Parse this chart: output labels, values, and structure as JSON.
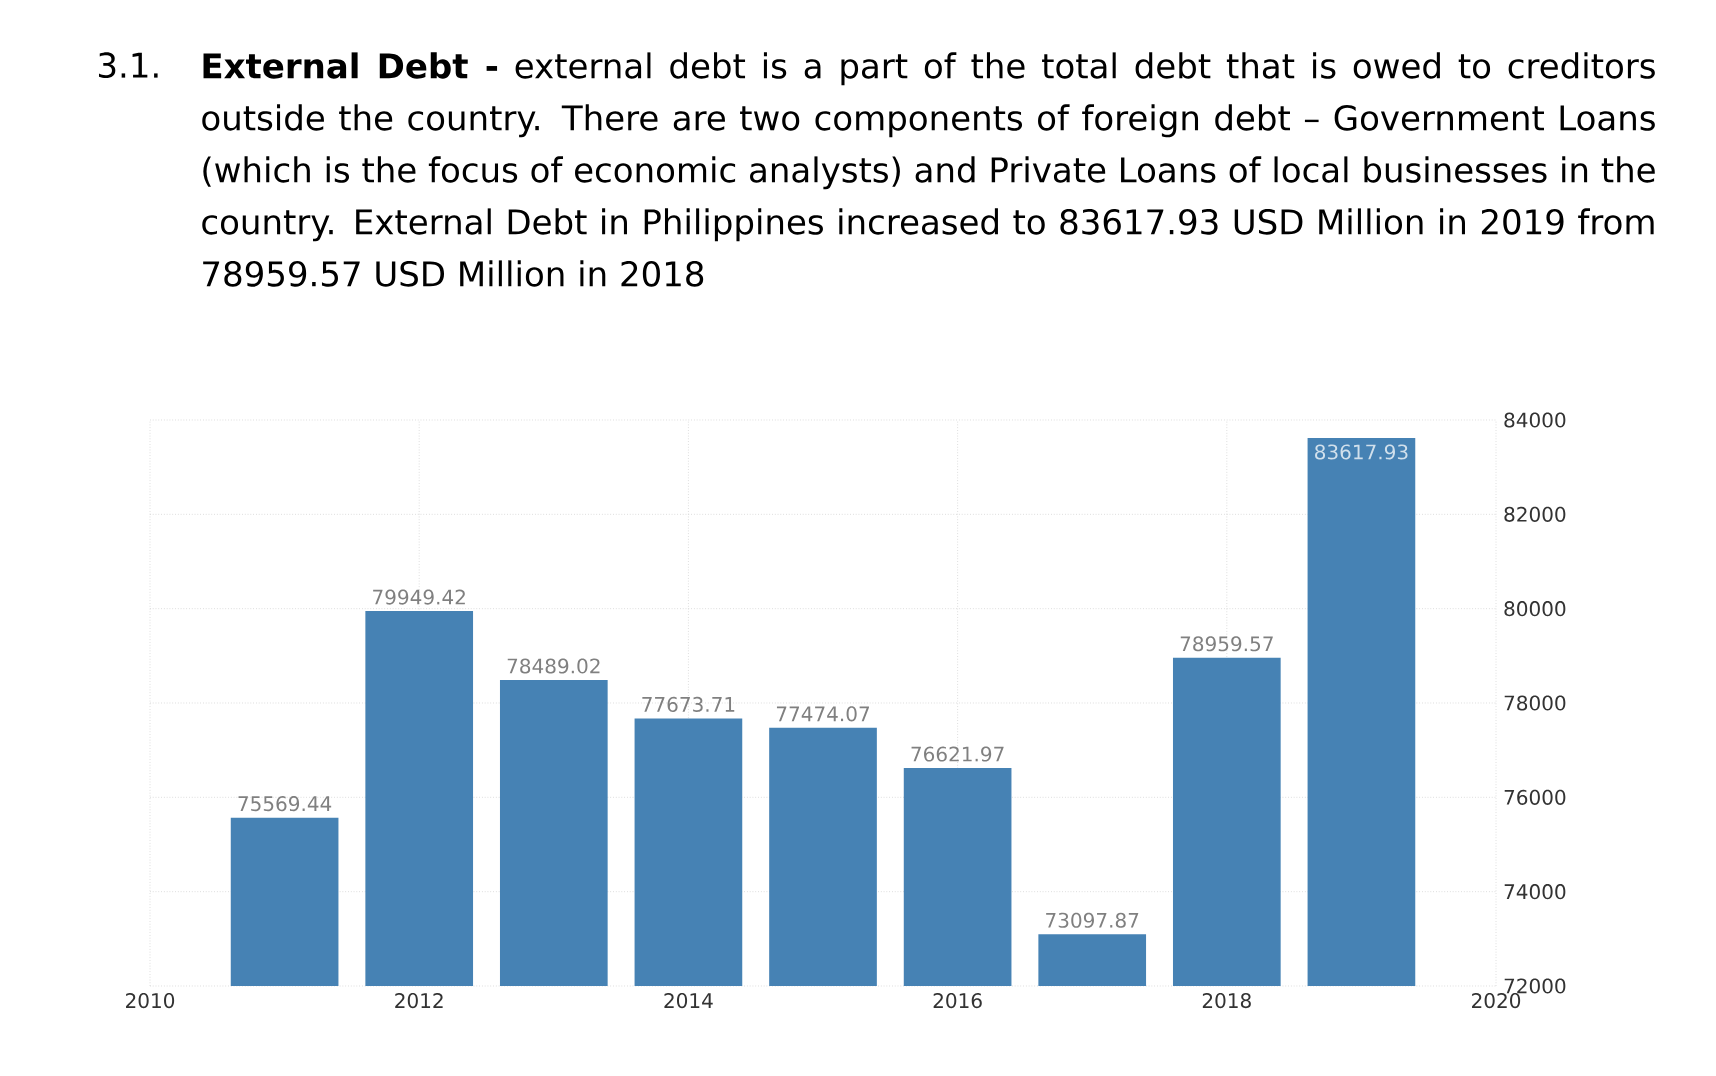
{
  "chart_data": {
    "type": "bar",
    "title": "**External Debt -** external debt is a part of the total debt that is owed to creditors outside the country. There are two components of foreign debt – Government Loans (which is the focus of economic analysts) and Private Loans of local businesses in the country. External Debt in Philippines increased to 83617.93 USD Million in 2019 from 78959.57 USD Million in 2018",
    "annotations": [
      "3.1."
    ],
    "x": [
      2011,
      2012,
      2013,
      2014,
      2015,
      2016,
      2017,
      2018,
      2019
    ],
    "values": [
      75569.44,
      79949.42,
      78489.02,
      77673.71,
      77474.07,
      76621.97,
      73097.87,
      78959.57,
      83617.93
    ],
    "color": "#4682b4",
    "xlim": [
      2010,
      2020
    ],
    "xticks": [
      2010,
      2012,
      2014,
      2016,
      2018,
      2020
    ],
    "ylim": [
      72000,
      84000
    ],
    "yticks": [
      72000,
      74000,
      76000,
      78000,
      80000,
      82000,
      84000
    ],
    "grid": true,
    "data_labels": true
  }
}
